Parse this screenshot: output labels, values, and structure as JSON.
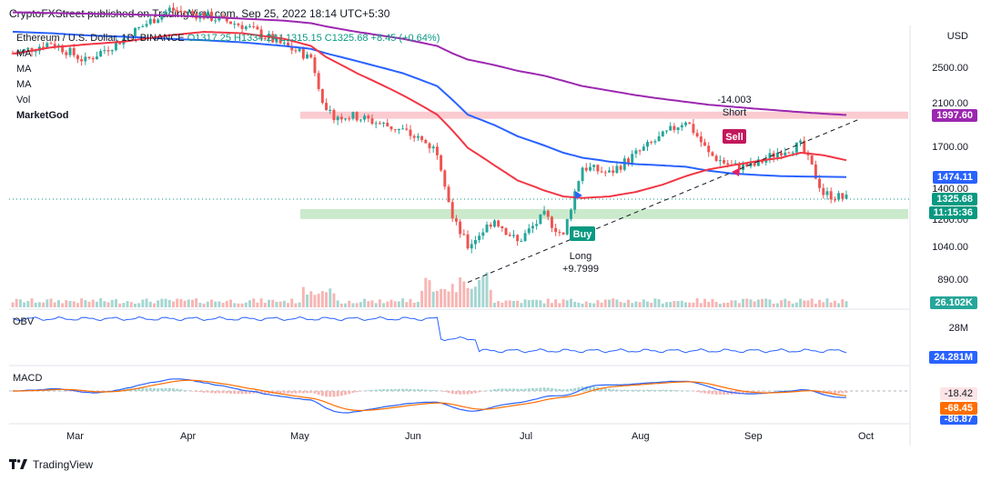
{
  "header": {
    "text": "CryptoFXStreet published on TradingView.com, Sep 25, 2022 18:14 UTC+5:30"
  },
  "legend": {
    "symbol": "Ethereum / U.S. Dollar, 1D, BINANCE",
    "ohlc": "O1317.25 H1334.24 L1315.15 C1325.68 +8.45 (+0.64%)",
    "ma_labels": [
      "MA",
      "MA",
      "MA"
    ],
    "vol_label": "Vol",
    "indicator": "MarketGod"
  },
  "price_axis": {
    "currency": "USD",
    "ticks": [
      "2500.00",
      "2100.00",
      "1700.00",
      "1400.00",
      "1200.00",
      "1040.00",
      "890.00"
    ],
    "tags": [
      {
        "label": "1997.60",
        "color": "#9c27b0"
      },
      {
        "label": "1474.11",
        "color": "#2962ff"
      },
      {
        "label": "1325.68",
        "color": "#089981"
      },
      {
        "label": "11:15:36",
        "color": "#089981"
      },
      {
        "label": "26.102K",
        "color": "#26a69a"
      }
    ]
  },
  "signals": {
    "sell_label": "Sell",
    "short_label": "Short",
    "short_value": "-14.003",
    "buy_label": "Buy",
    "long_label": "Long",
    "long_value": "+9.7999"
  },
  "obv": {
    "label": "OBV",
    "tick": "28M",
    "value_tag": "24.281M"
  },
  "macd": {
    "label": "MACD",
    "tags": [
      "-18.42",
      "-68.45",
      "-86.87"
    ]
  },
  "x_axis": {
    "labels": [
      "Mar",
      "Apr",
      "May",
      "Jun",
      "Jul",
      "Aug",
      "Sep",
      "Oct"
    ]
  },
  "footer": {
    "brand": "TradingView"
  },
  "colors": {
    "up": "#26a69a",
    "down": "#ef5350",
    "ma_red": "#f23645",
    "ma_blue": "#2962ff",
    "ma_purple": "#9c27b0"
  },
  "chart_data": {
    "type": "line",
    "symbol": "ETH/USD",
    "interval": "1D",
    "x": [
      "2022-02-20",
      "2022-03-01",
      "2022-03-10",
      "2022-03-20",
      "2022-04-01",
      "2022-04-10",
      "2022-04-20",
      "2022-05-01",
      "2022-05-08",
      "2022-05-12",
      "2022-05-20",
      "2022-06-01",
      "2022-06-10",
      "2022-06-14",
      "2022-06-18",
      "2022-06-25",
      "2022-07-01",
      "2022-07-08",
      "2022-07-13",
      "2022-07-18",
      "2022-07-25",
      "2022-08-01",
      "2022-08-08",
      "2022-08-14",
      "2022-08-20",
      "2022-08-26",
      "2022-09-01",
      "2022-09-08",
      "2022-09-13",
      "2022-09-19",
      "2022-09-25"
    ],
    "series": [
      {
        "values": [
          2700,
          2850,
          2600,
          2900,
          3350,
          3250,
          3100,
          2800,
          2650,
          2000,
          1980,
          1850,
          1680,
          1200,
          1050,
          1200,
          1070,
          1220,
          1100,
          1550,
          1500,
          1650,
          1800,
          1950,
          1650,
          1550,
          1560,
          1680,
          1720,
          1360,
          1325
        ]
      }
    ],
    "ma_red": [
      2700,
      2780,
      2820,
      2860,
      2950,
      3000,
      2980,
      2900,
      2800,
      2650,
      2450,
      2200,
      2000,
      1850,
      1700,
      1560,
      1450,
      1380,
      1340,
      1330,
      1340,
      1370,
      1420,
      1480,
      1530,
      1560,
      1590,
      1620,
      1660,
      1640,
      1600
    ],
    "ma_blue": [
      3000,
      2980,
      2950,
      2930,
      2900,
      2880,
      2850,
      2800,
      2760,
      2700,
      2600,
      2450,
      2300,
      2150,
      2000,
      1900,
      1800,
      1720,
      1660,
      1620,
      1590,
      1570,
      1560,
      1550,
      1520,
      1500,
      1490,
      1480,
      1478,
      1476,
      1474
    ],
    "ma_purple": [
      3300,
      3290,
      3280,
      3270,
      3250,
      3230,
      3200,
      3170,
      3130,
      3080,
      3000,
      2900,
      2800,
      2700,
      2620,
      2550,
      2480,
      2420,
      2360,
      2300,
      2250,
      2200,
      2160,
      2130,
      2100,
      2080,
      2060,
      2040,
      2025,
      2010,
      1997.6
    ],
    "resistance_zone": [
      1960,
      2030
    ],
    "support_zone": [
      1200,
      1260
    ],
    "trendline": {
      "from": [
        "2022-06-18",
        880
      ],
      "to": [
        "2022-09-28",
        1950
      ]
    },
    "ylim": [
      800,
      3300
    ]
  }
}
